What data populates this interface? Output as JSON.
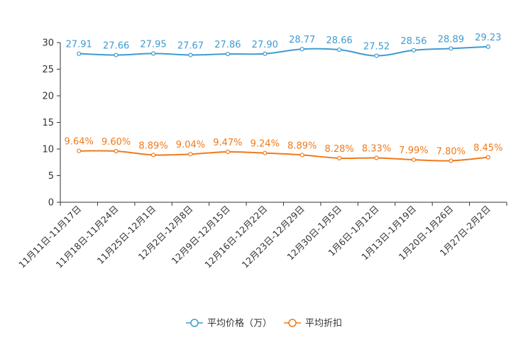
{
  "chart_data": {
    "type": "line",
    "title": "",
    "xlabel": "",
    "ylabel": "",
    "ylim": [
      0,
      30
    ],
    "yticks": [
      0,
      5,
      10,
      15,
      20,
      25,
      30
    ],
    "grid": false,
    "legend_position": "bottom-center",
    "categories": [
      "11月11日-11月17日",
      "11月18日-11月24日",
      "11月25日-12月1日",
      "12月2日-12月8日",
      "12月9日-12月15日",
      "12月16日-12月22日",
      "12月23日-12月29日",
      "12月30日-1月5日",
      "1月6日-1月12日",
      "1月13日-1月19日",
      "1月20日-1月26日",
      "1月27日-2月2日"
    ],
    "series": [
      {
        "name": "平均价格（万）",
        "color": "#3f9bd0",
        "values": [
          27.91,
          27.66,
          27.95,
          27.67,
          27.86,
          27.9,
          28.77,
          28.66,
          27.52,
          28.56,
          28.89,
          29.23
        ],
        "labels": [
          "27.91",
          "27.66",
          "27.95",
          "27.67",
          "27.86",
          "27.90",
          "28.77",
          "28.66",
          "27.52",
          "28.56",
          "28.89",
          "29.23"
        ]
      },
      {
        "name": "平均折扣",
        "color": "#f07a1a",
        "values": [
          9.64,
          9.6,
          8.89,
          9.04,
          9.47,
          9.24,
          8.89,
          8.28,
          8.33,
          7.99,
          7.8,
          8.45
        ],
        "labels": [
          "9.64%",
          "9.60%",
          "8.89%",
          "9.04%",
          "9.47%",
          "9.24%",
          "8.89%",
          "8.28%",
          "8.33%",
          "7.99%",
          "7.80%",
          "8.45%"
        ]
      }
    ]
  }
}
